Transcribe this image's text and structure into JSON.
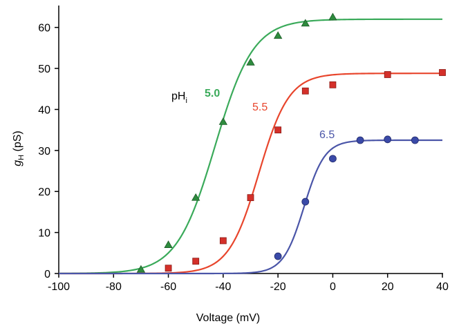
{
  "chart_data": {
    "type": "scatter",
    "xlabel": "Voltage (mV)",
    "ylabel_main": "g",
    "ylabel_sub": "H",
    "ylabel_unit": " (pS)",
    "xlim": [
      -100,
      40
    ],
    "ylim": [
      0,
      65
    ],
    "xticks": [
      -100,
      -80,
      -60,
      -40,
      -20,
      0,
      20,
      40
    ],
    "yticks": [
      0,
      10,
      20,
      30,
      40,
      50,
      60
    ],
    "grid": false,
    "annotation_main": "pH",
    "annotation_sub": "i",
    "series": [
      {
        "name": "5.0",
        "color": "#3aaa5a",
        "marker": "triangle",
        "marker_fill": "#2e8b3e",
        "fit": {
          "gmax": 62,
          "vhalf": -43,
          "slope": 7
        },
        "points": [
          {
            "x": -70,
            "y": 1
          },
          {
            "x": -60,
            "y": 7
          },
          {
            "x": -50,
            "y": 18.5
          },
          {
            "x": -40,
            "y": 37
          },
          {
            "x": -30,
            "y": 51.5
          },
          {
            "x": -20,
            "y": 58
          },
          {
            "x": -10,
            "y": 61
          },
          {
            "x": 0,
            "y": 62.5
          }
        ]
      },
      {
        "name": "5.5",
        "color": "#e8452c",
        "marker": "square",
        "marker_fill": "#d4302a",
        "fit": {
          "gmax": 48.8,
          "vhalf": -27,
          "slope": 5.5
        },
        "points": [
          {
            "x": -60,
            "y": 1.3
          },
          {
            "x": -50,
            "y": 3
          },
          {
            "x": -40,
            "y": 8
          },
          {
            "x": -30,
            "y": 18.5
          },
          {
            "x": -20,
            "y": 35
          },
          {
            "x": -10,
            "y": 44.5
          },
          {
            "x": 0,
            "y": 46
          },
          {
            "x": 20,
            "y": 48.5
          },
          {
            "x": 40,
            "y": 49
          }
        ]
      },
      {
        "name": "6.5",
        "color": "#4a55a8",
        "marker": "circle",
        "marker_fill": "#3a4aa8",
        "fit": {
          "gmax": 32.5,
          "vhalf": -10.5,
          "slope": 3.8
        },
        "points": [
          {
            "x": -20,
            "y": 4.2
          },
          {
            "x": -10,
            "y": 17.5
          },
          {
            "x": 0,
            "y": 28
          },
          {
            "x": 10,
            "y": 32.5
          },
          {
            "x": 20,
            "y": 32.7
          },
          {
            "x": 30,
            "y": 32.5
          }
        ]
      }
    ]
  }
}
